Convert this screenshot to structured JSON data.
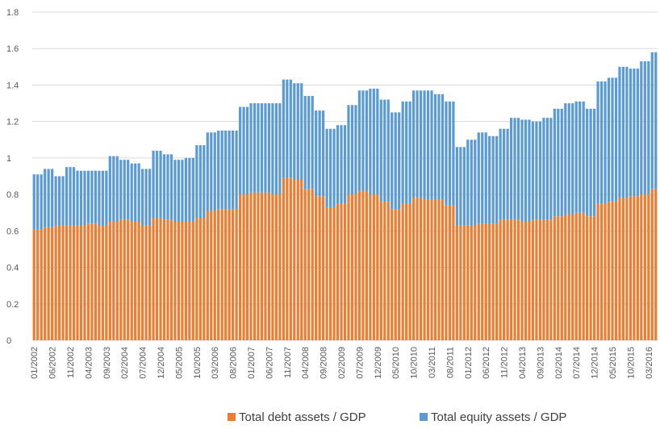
{
  "chart_data": {
    "type": "stacked-bar",
    "categories": [
      "01/2002",
      null,
      null,
      null,
      null,
      "06/2002",
      null,
      null,
      null,
      null,
      "11/2002",
      null,
      null,
      null,
      null,
      "04/2003",
      null,
      null,
      null,
      null,
      "09/2003",
      null,
      null,
      null,
      null,
      "02/2004",
      null,
      null,
      null,
      null,
      "07/2004",
      null,
      null,
      null,
      null,
      "12/2004",
      null,
      null,
      null,
      null,
      "05/2005",
      null,
      null,
      null,
      null,
      "10/2005",
      null,
      null,
      null,
      null,
      "03/2006",
      null,
      null,
      null,
      null,
      "08/2006",
      null,
      null,
      null,
      null,
      "01/2007",
      null,
      null,
      null,
      null,
      "06/2007",
      null,
      null,
      null,
      null,
      "11/2007",
      null,
      null,
      null,
      null,
      "04/2008",
      null,
      null,
      null,
      null,
      "09/2008",
      null,
      null,
      null,
      null,
      "02/2009",
      null,
      null,
      null,
      null,
      "07/2009",
      null,
      null,
      null,
      null,
      "12/2009",
      null,
      null,
      null,
      null,
      "05/2010",
      null,
      null,
      null,
      null,
      "10/2010",
      null,
      null,
      null,
      null,
      "03/2011",
      null,
      null,
      null,
      null,
      "08/2011",
      null,
      null,
      null,
      null,
      "01/2012",
      null,
      null,
      null,
      null,
      "06/2012",
      null,
      null,
      null,
      null,
      "11/2012",
      null,
      null,
      null,
      null,
      "04/2013",
      null,
      null,
      null,
      null,
      "09/2013",
      null,
      null,
      null,
      null,
      "02/2014",
      null,
      null,
      null,
      null,
      "07/2014",
      null,
      null,
      null,
      null,
      "12/2014",
      null,
      null,
      null,
      null,
      "05/2015",
      null,
      null,
      null,
      null,
      "10/2015",
      null,
      null,
      null,
      null,
      "03/2016",
      null,
      null
    ],
    "series": [
      {
        "name": "Total debt assets / GDP",
        "color": "#ED7D31",
        "values": [
          0.61,
          0.61,
          0.61,
          0.62,
          0.62,
          0.62,
          0.63,
          0.63,
          0.63,
          0.63,
          0.63,
          0.63,
          0.63,
          0.63,
          0.63,
          0.64,
          0.64,
          0.64,
          0.63,
          0.63,
          0.63,
          0.65,
          0.65,
          0.65,
          0.66,
          0.66,
          0.66,
          0.65,
          0.65,
          0.65,
          0.63,
          0.63,
          0.63,
          0.67,
          0.67,
          0.67,
          0.66,
          0.66,
          0.66,
          0.65,
          0.65,
          0.65,
          0.65,
          0.65,
          0.65,
          0.67,
          0.67,
          0.67,
          0.71,
          0.71,
          0.71,
          0.72,
          0.72,
          0.72,
          0.72,
          0.72,
          0.72,
          0.8,
          0.8,
          0.8,
          0.81,
          0.81,
          0.81,
          0.81,
          0.81,
          0.81,
          0.8,
          0.8,
          0.8,
          0.89,
          0.89,
          0.89,
          0.88,
          0.88,
          0.88,
          0.83,
          0.83,
          0.83,
          0.79,
          0.79,
          0.79,
          0.73,
          0.73,
          0.73,
          0.75,
          0.75,
          0.75,
          0.8,
          0.8,
          0.8,
          0.82,
          0.82,
          0.82,
          0.8,
          0.8,
          0.8,
          0.76,
          0.76,
          0.76,
          0.72,
          0.72,
          0.72,
          0.75,
          0.75,
          0.75,
          0.78,
          0.78,
          0.78,
          0.77,
          0.77,
          0.77,
          0.77,
          0.77,
          0.77,
          0.74,
          0.74,
          0.74,
          0.63,
          0.63,
          0.63,
          0.63,
          0.63,
          0.63,
          0.64,
          0.64,
          0.64,
          0.64,
          0.64,
          0.64,
          0.66,
          0.66,
          0.66,
          0.66,
          0.66,
          0.66,
          0.65,
          0.65,
          0.65,
          0.66,
          0.66,
          0.66,
          0.66,
          0.66,
          0.66,
          0.68,
          0.68,
          0.68,
          0.69,
          0.69,
          0.69,
          0.7,
          0.7,
          0.7,
          0.68,
          0.68,
          0.68,
          0.75,
          0.75,
          0.75,
          0.76,
          0.76,
          0.76,
          0.78,
          0.78,
          0.78,
          0.79,
          0.79,
          0.79,
          0.8,
          0.8,
          0.8,
          0.83,
          0.83
        ]
      },
      {
        "name": "Total equity assets / GDP",
        "color": "#5B9BD5",
        "values": [
          0.3,
          0.3,
          0.3,
          0.32,
          0.32,
          0.32,
          0.27,
          0.27,
          0.27,
          0.32,
          0.32,
          0.32,
          0.3,
          0.3,
          0.3,
          0.29,
          0.29,
          0.29,
          0.3,
          0.3,
          0.3,
          0.36,
          0.36,
          0.36,
          0.33,
          0.33,
          0.33,
          0.32,
          0.32,
          0.32,
          0.31,
          0.31,
          0.31,
          0.37,
          0.37,
          0.37,
          0.36,
          0.36,
          0.36,
          0.34,
          0.34,
          0.34,
          0.35,
          0.35,
          0.35,
          0.4,
          0.4,
          0.4,
          0.43,
          0.43,
          0.43,
          0.43,
          0.43,
          0.43,
          0.43,
          0.43,
          0.43,
          0.48,
          0.48,
          0.48,
          0.49,
          0.49,
          0.49,
          0.49,
          0.49,
          0.49,
          0.5,
          0.5,
          0.5,
          0.54,
          0.54,
          0.54,
          0.53,
          0.53,
          0.53,
          0.51,
          0.51,
          0.51,
          0.47,
          0.47,
          0.47,
          0.43,
          0.43,
          0.43,
          0.43,
          0.43,
          0.43,
          0.49,
          0.49,
          0.49,
          0.55,
          0.55,
          0.55,
          0.58,
          0.58,
          0.58,
          0.56,
          0.56,
          0.56,
          0.53,
          0.53,
          0.53,
          0.56,
          0.56,
          0.56,
          0.59,
          0.59,
          0.59,
          0.6,
          0.6,
          0.6,
          0.58,
          0.58,
          0.58,
          0.57,
          0.57,
          0.57,
          0.43,
          0.43,
          0.43,
          0.47,
          0.47,
          0.47,
          0.5,
          0.5,
          0.5,
          0.48,
          0.48,
          0.48,
          0.5,
          0.5,
          0.5,
          0.56,
          0.56,
          0.56,
          0.56,
          0.56,
          0.56,
          0.54,
          0.54,
          0.54,
          0.56,
          0.56,
          0.56,
          0.59,
          0.59,
          0.59,
          0.61,
          0.61,
          0.61,
          0.61,
          0.61,
          0.61,
          0.59,
          0.59,
          0.59,
          0.67,
          0.67,
          0.67,
          0.68,
          0.68,
          0.68,
          0.72,
          0.72,
          0.72,
          0.7,
          0.7,
          0.7,
          0.73,
          0.73,
          0.73,
          0.75,
          0.75
        ]
      }
    ],
    "ylim": [
      0,
      1.8
    ],
    "yticks": [
      0,
      0.2,
      0.4,
      0.6,
      0.8,
      1,
      1.2,
      1.4,
      1.6,
      1.8
    ],
    "grid": true,
    "legend": "bottom"
  }
}
